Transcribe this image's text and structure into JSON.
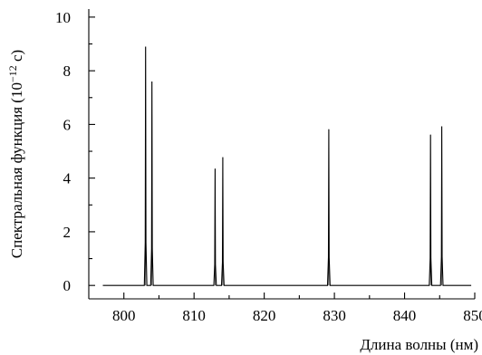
{
  "chart_data": {
    "type": "line",
    "title": "",
    "xlabel": "Длина волны (нм)",
    "ylabel": {
      "prefix": "Спектральная функция (10",
      "exponent": "−12",
      "suffix": " с)"
    },
    "xlim": [
      795,
      850
    ],
    "ylim": [
      -0.5,
      10.3
    ],
    "x_ticks": [
      800,
      810,
      820,
      830,
      840,
      850
    ],
    "y_ticks": [
      0,
      2,
      4,
      6,
      8,
      10
    ],
    "grid": false,
    "legend": "none",
    "baseline_range": [
      797,
      849.5
    ],
    "peaks": [
      {
        "x": 803.1,
        "y": 8.9
      },
      {
        "x": 804.0,
        "y": 7.6
      },
      {
        "x": 813.0,
        "y": 4.35
      },
      {
        "x": 814.1,
        "y": 4.78
      },
      {
        "x": 829.2,
        "y": 5.82
      },
      {
        "x": 843.7,
        "y": 5.62
      },
      {
        "x": 845.3,
        "y": 5.93
      }
    ],
    "line_color": "#000000"
  }
}
